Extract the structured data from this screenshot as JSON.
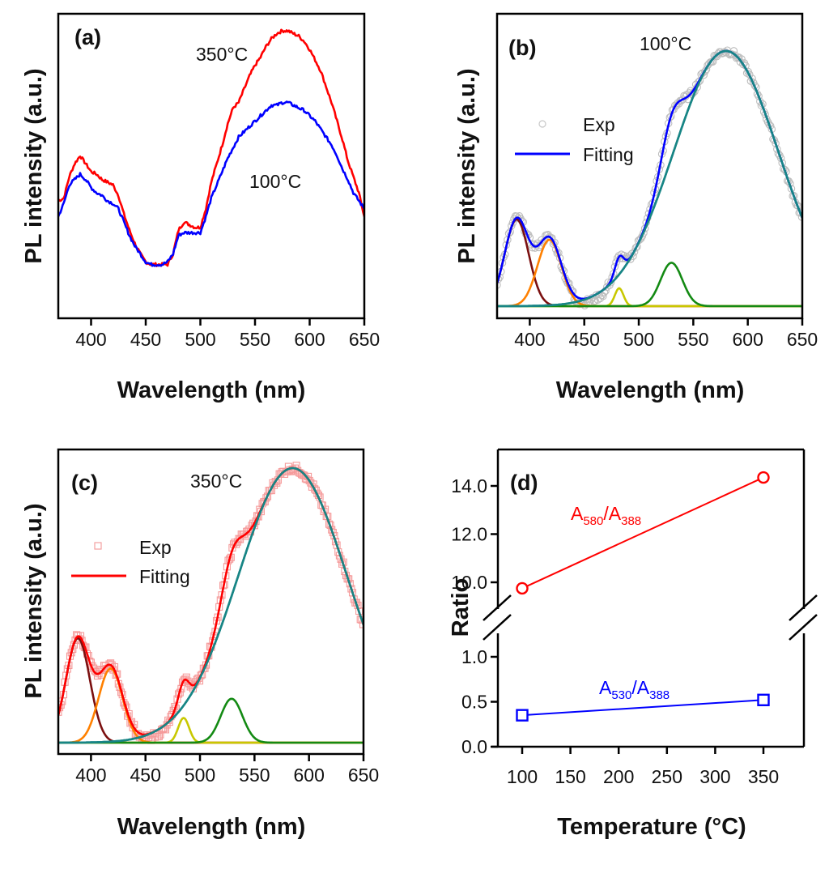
{
  "chart_data": [
    {
      "id": "a",
      "type": "line",
      "panel_label": "(a)",
      "xlabel": "Wavelength (nm)",
      "ylabel": "PL intensity (a.u.)",
      "xlim": [
        370,
        650
      ],
      "ylim": [
        0,
        1
      ],
      "xticks": [
        400,
        450,
        500,
        550,
        600,
        650
      ],
      "yticks": [],
      "grid": false,
      "series": [
        {
          "name": "350°C",
          "color": "#ff0000",
          "x": [
            370,
            375,
            380,
            385,
            390,
            395,
            400,
            405,
            410,
            415,
            420,
            425,
            430,
            435,
            440,
            445,
            450,
            455,
            460,
            465,
            470,
            475,
            480,
            485,
            490,
            495,
            500,
            505,
            510,
            515,
            520,
            525,
            530,
            535,
            540,
            545,
            550,
            555,
            560,
            565,
            570,
            575,
            580,
            585,
            590,
            595,
            600,
            605,
            610,
            615,
            620,
            625,
            630,
            635,
            640,
            645,
            650
          ],
          "y": [
            0.36,
            0.37,
            0.45,
            0.5,
            0.53,
            0.5,
            0.47,
            0.46,
            0.44,
            0.43,
            0.42,
            0.38,
            0.31,
            0.25,
            0.2,
            0.16,
            0.13,
            0.12,
            0.12,
            0.12,
            0.12,
            0.16,
            0.25,
            0.28,
            0.27,
            0.26,
            0.26,
            0.33,
            0.43,
            0.5,
            0.57,
            0.65,
            0.71,
            0.73,
            0.78,
            0.83,
            0.87,
            0.9,
            0.94,
            0.97,
            0.99,
            1.0,
            1.0,
            0.99,
            0.98,
            0.96,
            0.93,
            0.89,
            0.85,
            0.79,
            0.73,
            0.66,
            0.59,
            0.51,
            0.45,
            0.39,
            0.3
          ]
        },
        {
          "name": "100°C",
          "color": "#0000ff",
          "x": [
            370,
            375,
            380,
            385,
            390,
            395,
            400,
            405,
            410,
            415,
            420,
            425,
            430,
            435,
            440,
            445,
            450,
            455,
            460,
            465,
            470,
            475,
            480,
            485,
            490,
            495,
            500,
            505,
            510,
            515,
            520,
            525,
            530,
            535,
            540,
            545,
            550,
            555,
            560,
            565,
            570,
            575,
            580,
            585,
            590,
            595,
            600,
            605,
            610,
            615,
            620,
            625,
            630,
            635,
            640,
            645,
            650
          ],
          "y": [
            0.3,
            0.35,
            0.42,
            0.44,
            0.46,
            0.44,
            0.41,
            0.39,
            0.38,
            0.36,
            0.35,
            0.33,
            0.28,
            0.23,
            0.19,
            0.16,
            0.13,
            0.12,
            0.12,
            0.12,
            0.13,
            0.16,
            0.23,
            0.24,
            0.24,
            0.24,
            0.24,
            0.3,
            0.37,
            0.42,
            0.47,
            0.52,
            0.56,
            0.6,
            0.62,
            0.64,
            0.66,
            0.68,
            0.7,
            0.72,
            0.72,
            0.73,
            0.73,
            0.72,
            0.71,
            0.7,
            0.68,
            0.66,
            0.63,
            0.6,
            0.57,
            0.53,
            0.48,
            0.44,
            0.39,
            0.36,
            0.33
          ]
        }
      ],
      "annotations": [
        "350°C",
        "100°C"
      ]
    },
    {
      "id": "b",
      "type": "line",
      "panel_label": "(b)",
      "title_annotation": "100°C",
      "xlabel": "Wavelength (nm)",
      "ylabel": "PL intensity (a.u.)",
      "xlim": [
        370,
        650
      ],
      "ylim": [
        0,
        1
      ],
      "xticks": [
        400,
        450,
        500,
        550,
        600,
        650
      ],
      "yticks": [],
      "grid": false,
      "legend": {
        "position": "upper-left",
        "entries": [
          {
            "label": "Exp",
            "marker": "open-circle",
            "color": "#c0c0c0"
          },
          {
            "label": "Fitting",
            "marker": "line",
            "color": "#0000ff"
          }
        ]
      },
      "exp_color": "#bdbdbd",
      "fit_color": "#0000ff",
      "components": [
        {
          "name": "peak-388",
          "center": 388,
          "height": 0.34,
          "sigma": 11,
          "color": "#7b1010"
        },
        {
          "name": "peak-418",
          "center": 418,
          "height": 0.26,
          "sigma": 11,
          "color": "#ff8000"
        },
        {
          "name": "peak-482",
          "center": 482,
          "height": 0.07,
          "sigma": 4,
          "color": "#c8c800"
        },
        {
          "name": "peak-530",
          "center": 530,
          "height": 0.17,
          "sigma": 10,
          "color": "#138a13"
        },
        {
          "name": "peak-580",
          "center": 580,
          "height": 1.0,
          "sigma": 48,
          "color": "#178585"
        }
      ]
    },
    {
      "id": "c",
      "type": "line",
      "panel_label": "(c)",
      "title_annotation": "350°C",
      "xlabel": "Wavelength (nm)",
      "ylabel": "PL intensity (a.u.)",
      "xlim": [
        370,
        650
      ],
      "ylim": [
        0,
        1
      ],
      "xticks": [
        400,
        450,
        500,
        550,
        600,
        650
      ],
      "yticks": [],
      "grid": false,
      "legend": {
        "position": "upper-left",
        "entries": [
          {
            "label": "Exp",
            "marker": "open-square",
            "color": "#f4a0a0"
          },
          {
            "label": "Fitting",
            "marker": "line",
            "color": "#ff0000"
          }
        ]
      },
      "exp_color": "#f59a9a",
      "fit_color": "#ff0000",
      "components": [
        {
          "name": "peak-388",
          "center": 388,
          "height": 0.38,
          "sigma": 11,
          "color": "#7b1010"
        },
        {
          "name": "peak-418",
          "center": 418,
          "height": 0.27,
          "sigma": 11,
          "color": "#ff8000"
        },
        {
          "name": "peak-485",
          "center": 485,
          "height": 0.09,
          "sigma": 5,
          "color": "#c8c800"
        },
        {
          "name": "peak-529",
          "center": 529,
          "height": 0.16,
          "sigma": 10,
          "color": "#138a13"
        },
        {
          "name": "peak-585",
          "center": 585,
          "height": 1.0,
          "sigma": 50,
          "color": "#178585"
        }
      ]
    },
    {
      "id": "d",
      "type": "line",
      "panel_label": "(d)",
      "xlabel": "Temperature (°C)",
      "ylabel": "Ratio",
      "xlim": [
        75,
        390
      ],
      "xticks": [
        100,
        150,
        200,
        250,
        300,
        350
      ],
      "broken_y_axis": {
        "lower": [
          0.0,
          1.0
        ],
        "upper": [
          9.0,
          15.0
        ]
      },
      "yticks_lower": [
        "0.0",
        "0.5",
        "1.0"
      ],
      "yticks_upper": [
        "10.0",
        "12.0",
        "14.0"
      ],
      "grid": false,
      "series": [
        {
          "name": "A580/A388",
          "label_main": "A",
          "sub1": "580",
          "sep": "/A",
          "sub2": "388",
          "color": "#ff0000",
          "marker": "open-circle",
          "x": [
            100,
            350
          ],
          "y": [
            9.75,
            14.35
          ]
        },
        {
          "name": "A530/A388",
          "label_main": "A",
          "sub1": "530",
          "sep": "/A",
          "sub2": "388",
          "color": "#0000ff",
          "marker": "open-square",
          "x": [
            100,
            350
          ],
          "y": [
            0.35,
            0.52
          ]
        }
      ]
    }
  ]
}
